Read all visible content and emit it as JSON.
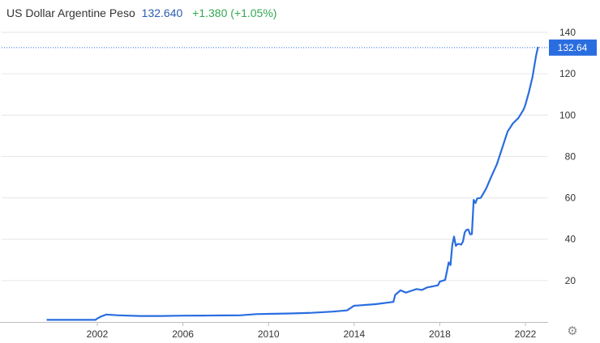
{
  "header": {
    "title": "US Dollar Argentine Peso",
    "price": "132.640",
    "change": "+1.380 (+1.05%)"
  },
  "colors": {
    "line": "#2a6de0",
    "price_text": "#2a5db0",
    "change_positive": "#33a853",
    "last_price_label_bg": "#2a6de0",
    "grid": "#e6e6e6"
  },
  "icons": {
    "settings": "gear-icon"
  },
  "chart_data": {
    "type": "line",
    "title": "US Dollar Argentine Peso",
    "xlabel": "",
    "ylabel": "",
    "ylim": [
      0,
      140
    ],
    "y_ticks": [
      20,
      40,
      60,
      80,
      100,
      120,
      140
    ],
    "x_ticks": [
      "2002",
      "2006",
      "2010",
      "2014",
      "2018",
      "2022"
    ],
    "grid": true,
    "last_value_label": "132.64",
    "series": [
      {
        "x": [
          "1999-09",
          "2000-01",
          "2001-01",
          "2001-12",
          "2002-01",
          "2002-03",
          "2002-06",
          "2003-01",
          "2004-01",
          "2005-01",
          "2006-01",
          "2007-01",
          "2008-01",
          "2008-09",
          "2009-06",
          "2010-01",
          "2011-01",
          "2012-01",
          "2013-01",
          "2013-09",
          "2014-01",
          "2014-02",
          "2015-01",
          "2015-11",
          "2015-12",
          "2016-03",
          "2016-06",
          "2016-12",
          "2017-03",
          "2017-06",
          "2017-12",
          "2018-01",
          "2018-04",
          "2018-05",
          "2018-06",
          "2018-07",
          "2018-08",
          "2018-09",
          "2018-10",
          "2018-11",
          "2018-12",
          "2019-01",
          "2019-02",
          "2019-03",
          "2019-04",
          "2019-05",
          "2019-06",
          "2019-07",
          "2019-08",
          "2019-09",
          "2019-10",
          "2019-12",
          "2020-03",
          "2020-06",
          "2020-09",
          "2020-12",
          "2021-03",
          "2021-06",
          "2021-09",
          "2021-12",
          "2022-01",
          "2022-03",
          "2022-05",
          "2022-07",
          "2022-08"
        ],
        "y": [
          1,
          1,
          1,
          1,
          1.7,
          2.6,
          3.6,
          3.2,
          2.9,
          2.9,
          3.05,
          3.1,
          3.15,
          3.2,
          3.8,
          3.9,
          4.1,
          4.4,
          5.0,
          5.6,
          7.9,
          7.9,
          8.6,
          9.7,
          13.1,
          15.3,
          14.2,
          15.9,
          15.5,
          16.7,
          17.7,
          19.5,
          20.3,
          24.5,
          28.8,
          27.5,
          37.2,
          41.3,
          36.8,
          37.7,
          37.7,
          37.4,
          38.9,
          43.4,
          44.5,
          44.7,
          42.4,
          42.5,
          59.0,
          57.5,
          59.7,
          60,
          64.5,
          70.5,
          76.2,
          84.1,
          92.0,
          96.0,
          98.5,
          102.7,
          105,
          111.2,
          118.5,
          128.8,
          132.64
        ]
      }
    ]
  }
}
